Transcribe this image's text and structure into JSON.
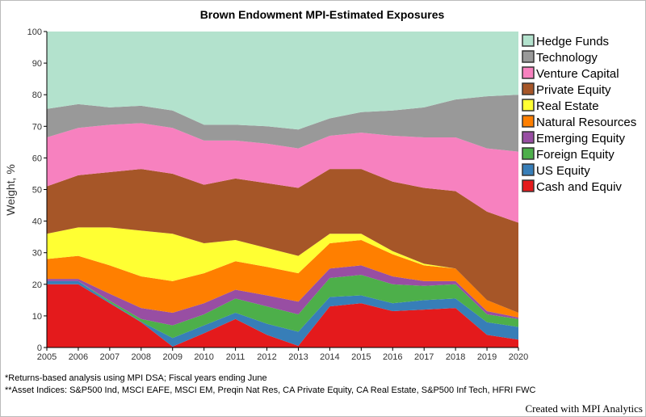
{
  "chart_data": {
    "type": "area",
    "stacked": true,
    "title": "Brown Endowment MPI-Estimated Exposures",
    "xlabel": "",
    "ylabel": "Weight, %",
    "ylim": [
      0,
      100
    ],
    "yticks": [
      0,
      10,
      20,
      30,
      40,
      50,
      60,
      70,
      80,
      90,
      100
    ],
    "x": [
      2005,
      2006,
      2007,
      2008,
      2009,
      2010,
      2011,
      2012,
      2013,
      2014,
      2015,
      2016,
      2017,
      2018,
      2019,
      2020
    ],
    "legend_position": "right",
    "grid": false,
    "series": [
      {
        "name": "Cash and Equiv",
        "color": "#e41a1c",
        "values": [
          20,
          20,
          14,
          8,
          0.3,
          4.5,
          9,
          4,
          0.5,
          13,
          14,
          11.5,
          12,
          12.5,
          4,
          2.5
        ]
      },
      {
        "name": "US Equity",
        "color": "#377eb8",
        "values": [
          1,
          1,
          0.3,
          0.2,
          2.7,
          2.5,
          2,
          3.5,
          4.5,
          3,
          2.5,
          2.5,
          3,
          3,
          4,
          4
        ]
      },
      {
        "name": "Foreign Equity",
        "color": "#4daf4a",
        "values": [
          0,
          0,
          0.5,
          0.8,
          4,
          3.5,
          4.5,
          5.5,
          5.5,
          6,
          6.5,
          6,
          4.5,
          4.5,
          2.5,
          2.5
        ]
      },
      {
        "name": "Emerging Equity",
        "color": "#984ea3",
        "values": [
          0.7,
          0.7,
          2.2,
          3.5,
          4,
          3.5,
          2.8,
          3.5,
          4,
          3,
          3,
          2.5,
          1.5,
          1,
          1,
          0.5
        ]
      },
      {
        "name": "Natural Resources",
        "color": "#ff7f00",
        "values": [
          6.3,
          7.3,
          9,
          10,
          10,
          9.5,
          9,
          9,
          9,
          8,
          8,
          7,
          5,
          4,
          3.5,
          1.5
        ]
      },
      {
        "name": "Real Estate",
        "color": "#ffff33",
        "values": [
          8,
          9,
          12,
          14.5,
          15,
          9.5,
          6.7,
          6,
          5.5,
          3,
          2,
          1,
          0.5,
          0,
          0,
          0
        ]
      },
      {
        "name": "Private Equity",
        "color": "#a65628",
        "values": [
          15,
          16.5,
          17.5,
          19.5,
          19,
          18.5,
          19.5,
          20.5,
          21.5,
          20.5,
          20.5,
          22,
          24,
          24.5,
          28,
          28.5
        ]
      },
      {
        "name": "Venture Capital",
        "color": "#f781bf",
        "values": [
          15.5,
          15,
          15,
          14.5,
          14.5,
          14,
          12,
          12.5,
          12.5,
          10.5,
          11.5,
          14.5,
          16,
          17,
          20,
          22.5
        ]
      },
      {
        "name": "Technology",
        "color": "#999999",
        "values": [
          9,
          7.5,
          5.5,
          5.5,
          5.5,
          5,
          5,
          5.5,
          6,
          5.5,
          6.5,
          8,
          9.5,
          12,
          16.5,
          18
        ]
      },
      {
        "name": "Hedge Funds",
        "color": "#b3e2cd",
        "values": [
          24.5,
          23,
          24,
          23.5,
          25,
          29.5,
          29.5,
          30,
          31,
          27.5,
          25.5,
          25,
          24,
          21.5,
          20.5,
          20
        ]
      }
    ]
  },
  "notes": {
    "line1": "*Returns-based analysis using MPI DSA; Fiscal years ending June",
    "line2": "**Asset Indices: S&P500 Ind, MSCI EAFE, MSCI EM, Preqin Nat Res, CA Private Equity, CA Real Estate, S&P500 Inf Tech, HFRI FWC"
  },
  "credit": "Created with MPI Analytics"
}
